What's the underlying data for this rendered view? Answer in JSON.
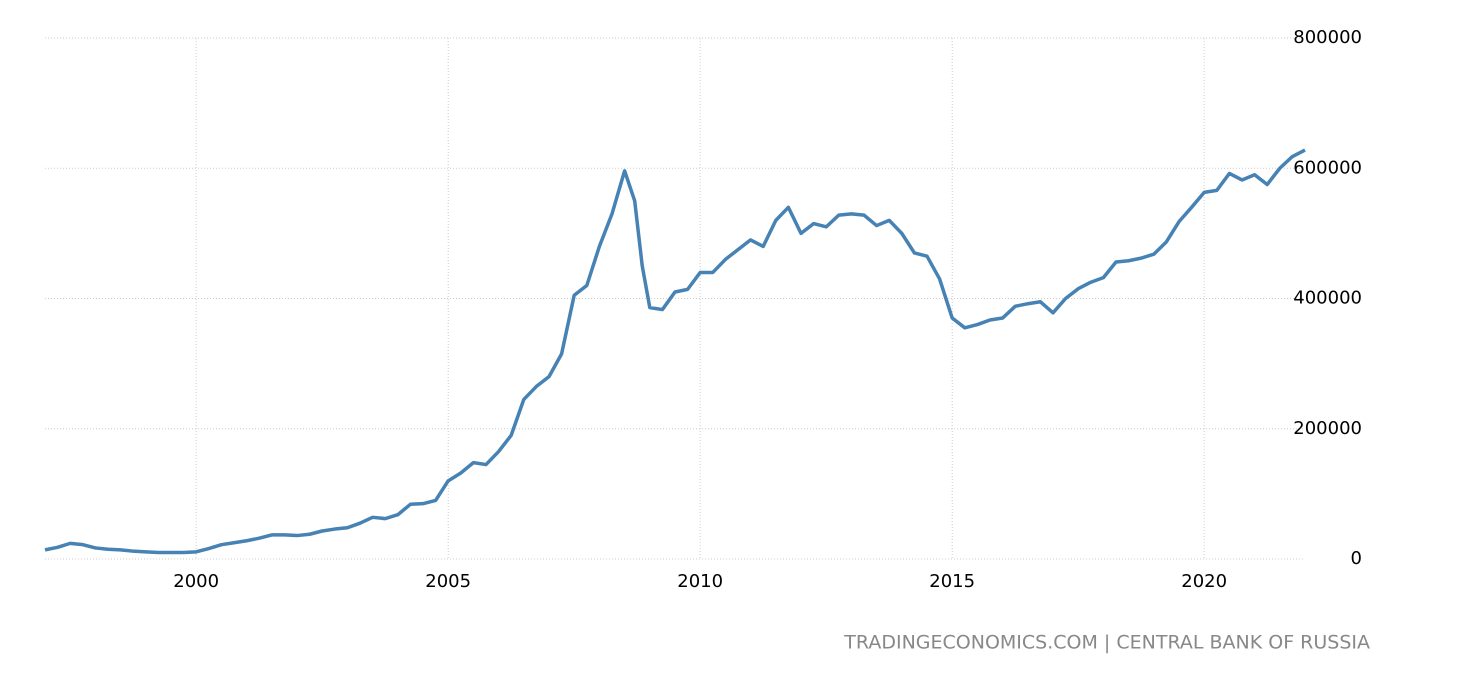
{
  "chart_data": {
    "type": "line",
    "source": "TRADINGECONOMICS.COM | CENTRAL BANK OF RUSSIA",
    "x": [
      1997.0,
      1997.25,
      1997.5,
      1997.75,
      1998.0,
      1998.25,
      1998.5,
      1998.75,
      1999.0,
      1999.25,
      1999.5,
      1999.75,
      2000.0,
      2000.25,
      2000.5,
      2000.75,
      2001.0,
      2001.25,
      2001.5,
      2001.75,
      2002.0,
      2002.25,
      2002.5,
      2002.75,
      2003.0,
      2003.25,
      2003.5,
      2003.75,
      2004.0,
      2004.25,
      2004.5,
      2004.75,
      2005.0,
      2005.25,
      2005.5,
      2005.75,
      2006.0,
      2006.25,
      2006.5,
      2006.75,
      2007.0,
      2007.25,
      2007.5,
      2007.75,
      2008.0,
      2008.25,
      2008.5,
      2008.7,
      2008.85,
      2009.0,
      2009.25,
      2009.5,
      2009.75,
      2010.0,
      2010.25,
      2010.5,
      2010.75,
      2011.0,
      2011.25,
      2011.5,
      2011.75,
      2012.0,
      2012.25,
      2012.5,
      2012.75,
      2013.0,
      2013.25,
      2013.5,
      2013.75,
      2014.0,
      2014.25,
      2014.5,
      2014.75,
      2015.0,
      2015.25,
      2015.5,
      2015.75,
      2016.0,
      2016.25,
      2016.5,
      2016.75,
      2017.0,
      2017.25,
      2017.5,
      2017.75,
      2018.0,
      2018.25,
      2018.5,
      2018.75,
      2019.0,
      2019.25,
      2019.5,
      2019.75,
      2020.0,
      2020.25,
      2020.5,
      2020.75,
      2021.0,
      2021.25,
      2021.5,
      2021.75,
      2022.0
    ],
    "series": [
      {
        "color": "#4682b4",
        "values": [
          14000,
          18000,
          24000,
          22000,
          17000,
          15000,
          14000,
          12000,
          11000,
          10000,
          10000,
          10000,
          11000,
          16000,
          22000,
          25000,
          28000,
          32000,
          37000,
          37000,
          36000,
          38000,
          43000,
          46000,
          48000,
          55000,
          64000,
          62000,
          68000,
          84000,
          85000,
          90000,
          120000,
          132000,
          148000,
          145000,
          165000,
          190000,
          245000,
          265000,
          280000,
          315000,
          405000,
          420000,
          480000,
          530000,
          596000,
          550000,
          450000,
          386000,
          383000,
          410000,
          414000,
          440000,
          440000,
          460000,
          475000,
          490000,
          480000,
          520000,
          540000,
          500000,
          515000,
          510000,
          528000,
          530000,
          528000,
          512000,
          520000,
          500000,
          470000,
          465000,
          430000,
          370000,
          355000,
          360000,
          367000,
          370000,
          388000,
          392000,
          395000,
          378000,
          400000,
          415000,
          425000,
          432000,
          456000,
          458000,
          462000,
          468000,
          487000,
          518000,
          540000,
          563000,
          566000,
          592000,
          582000,
          590000,
          575000,
          600000,
          618000,
          628000
        ]
      }
    ],
    "xlim": [
      1997,
      2022
    ],
    "xticks": [
      2000,
      2005,
      2010,
      2015,
      2020
    ],
    "ylim": [
      0,
      800000
    ],
    "yticks": [
      0,
      200000,
      400000,
      600000,
      800000
    ],
    "grid": true
  }
}
